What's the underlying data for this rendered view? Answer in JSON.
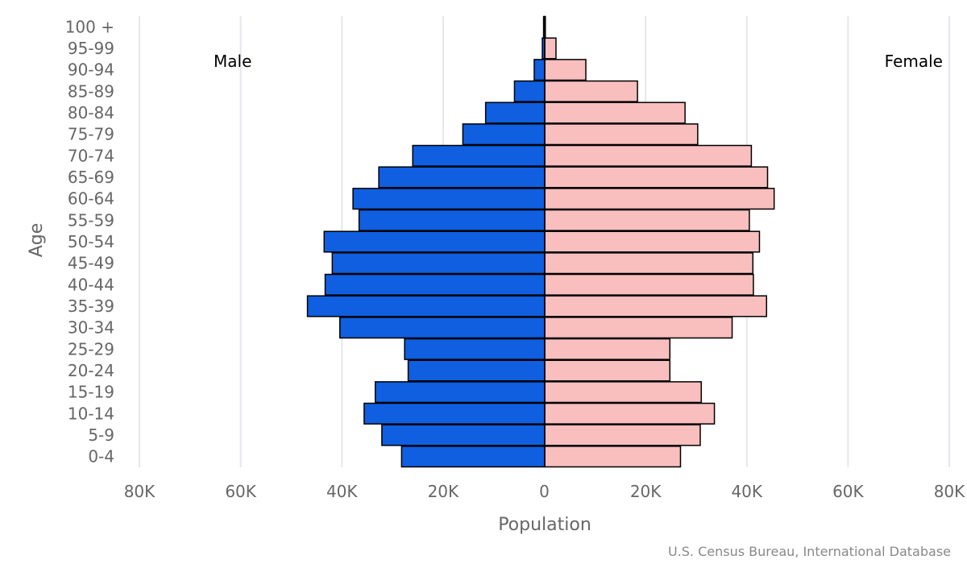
{
  "chart_data": {
    "type": "bar",
    "orientation": "horizontal",
    "categories": [
      "0-4",
      "5-9",
      "10-14",
      "15-19",
      "20-24",
      "25-29",
      "30-34",
      "35-39",
      "40-44",
      "45-49",
      "50-54",
      "55-59",
      "60-64",
      "65-69",
      "70-74",
      "75-79",
      "80-84",
      "85-89",
      "90-94",
      "95-99",
      "100 +"
    ],
    "series": [
      {
        "name": "Male",
        "color": "#0f5fe0",
        "values": [
          28200,
          32100,
          35600,
          33400,
          26900,
          27600,
          40400,
          46800,
          43300,
          41900,
          43500,
          36600,
          37800,
          32700,
          26000,
          16100,
          11600,
          5900,
          2000,
          400,
          150
        ]
      },
      {
        "name": "Female",
        "color": "#f9bebe",
        "values": [
          26900,
          30800,
          33600,
          31000,
          24800,
          24800,
          37100,
          43900,
          41300,
          41200,
          42500,
          40500,
          45400,
          44100,
          40900,
          30300,
          27800,
          18400,
          8200,
          2300,
          200
        ]
      }
    ],
    "xlabel": "Population",
    "ylabel": "Age",
    "xlim": [
      -80000,
      80000
    ],
    "xticks": [
      "80K",
      "60K",
      "40K",
      "20K",
      "0",
      "20K",
      "40K",
      "60K",
      "80K"
    ],
    "xtick_values": [
      -80000,
      -60000,
      -40000,
      -20000,
      0,
      20000,
      40000,
      60000,
      80000
    ],
    "grid": "vertical",
    "legend_left": "Male",
    "legend_right": "Female",
    "credit": "U.S. Census Bureau, International Database"
  }
}
